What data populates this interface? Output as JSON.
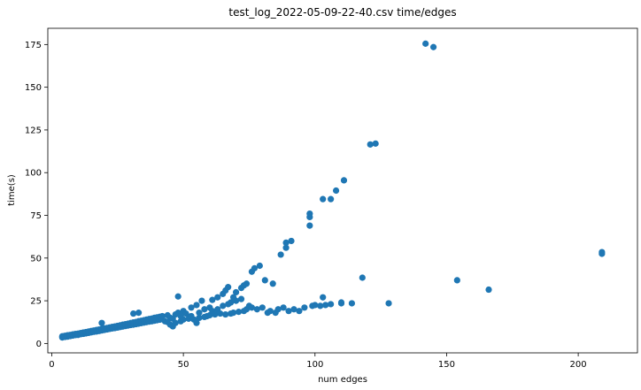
{
  "chart_data": {
    "type": "scatter",
    "title": "test_log_2022-05-09-22-40.csv time/edges",
    "xlabel": "num edges",
    "ylabel": "time(s)",
    "xlim": [
      -1.5,
      222.5
    ],
    "ylim": [
      -5.5,
      184.5
    ],
    "xticks": [
      0,
      50,
      100,
      150,
      200
    ],
    "yticks": [
      0,
      25,
      50,
      75,
      100,
      125,
      150,
      175
    ],
    "grid": false,
    "marker_color": "#1f77b4",
    "series": [
      {
        "points": [
          [
            4,
            3.5
          ],
          [
            4,
            4.2
          ],
          [
            5,
            3.8
          ],
          [
            5,
            4.5
          ],
          [
            6,
            4.0
          ],
          [
            6,
            4.8
          ],
          [
            7,
            4.3
          ],
          [
            7,
            5.0
          ],
          [
            8,
            4.6
          ],
          [
            8,
            5.3
          ],
          [
            9,
            4.9
          ],
          [
            9,
            5.6
          ],
          [
            10,
            5.0
          ],
          [
            10,
            5.8
          ],
          [
            11,
            5.4
          ],
          [
            11,
            6.1
          ],
          [
            12,
            5.6
          ],
          [
            12,
            6.4
          ],
          [
            13,
            5.9
          ],
          [
            13,
            6.7
          ],
          [
            14,
            6.2
          ],
          [
            14,
            7.0
          ],
          [
            15,
            6.5
          ],
          [
            15,
            7.3
          ],
          [
            16,
            6.8
          ],
          [
            16,
            7.6
          ],
          [
            17,
            7.0
          ],
          [
            17,
            7.9
          ],
          [
            18,
            7.3
          ],
          [
            18,
            8.2
          ],
          [
            19,
            7.6
          ],
          [
            19,
            8.5
          ],
          [
            19,
            12.0
          ],
          [
            20,
            7.9
          ],
          [
            20,
            8.8
          ],
          [
            21,
            8.2
          ],
          [
            21,
            9.1
          ],
          [
            22,
            8.5
          ],
          [
            22,
            9.4
          ],
          [
            23,
            8.8
          ],
          [
            23,
            9.7
          ],
          [
            24,
            9.0
          ],
          [
            24,
            10.0
          ],
          [
            25,
            9.3
          ],
          [
            25,
            10.3
          ],
          [
            26,
            9.6
          ],
          [
            26,
            10.6
          ],
          [
            27,
            9.9
          ],
          [
            27,
            11.0
          ],
          [
            28,
            10.2
          ],
          [
            28,
            11.3
          ],
          [
            29,
            10.5
          ],
          [
            29,
            11.6
          ],
          [
            30,
            10.8
          ],
          [
            30,
            12.0
          ],
          [
            31,
            11.0
          ],
          [
            31,
            12.3
          ],
          [
            31,
            17.5
          ],
          [
            32,
            11.3
          ],
          [
            32,
            12.6
          ],
          [
            33,
            11.6
          ],
          [
            33,
            13.0
          ],
          [
            33,
            18.0
          ],
          [
            34,
            11.9
          ],
          [
            34,
            13.3
          ],
          [
            35,
            12.2
          ],
          [
            35,
            13.6
          ],
          [
            36,
            12.5
          ],
          [
            36,
            14.0
          ],
          [
            37,
            12.8
          ],
          [
            37,
            14.3
          ],
          [
            38,
            13.0
          ],
          [
            38,
            14.6
          ],
          [
            39,
            13.3
          ],
          [
            39,
            15.0
          ],
          [
            40,
            13.6
          ],
          [
            40,
            15.3
          ],
          [
            41,
            13.9
          ],
          [
            41,
            15.6
          ],
          [
            42,
            14.2
          ],
          [
            42,
            16.0
          ],
          [
            43,
            13.0
          ],
          [
            44,
            12.5
          ],
          [
            44,
            16.5
          ],
          [
            45,
            11.0
          ],
          [
            45,
            15.0
          ],
          [
            46,
            10.0
          ],
          [
            46,
            14.5
          ],
          [
            47,
            17.0
          ],
          [
            47,
            12.0
          ],
          [
            48,
            18.0
          ],
          [
            48,
            27.5
          ],
          [
            49,
            13.0
          ],
          [
            49,
            16.0
          ],
          [
            50,
            19.0
          ],
          [
            50,
            14.0
          ],
          [
            51,
            17.5
          ],
          [
            52,
            14.5
          ],
          [
            53,
            21.0
          ],
          [
            53,
            16.0
          ],
          [
            54,
            14.0
          ],
          [
            55,
            12.0
          ],
          [
            55,
            22.5
          ],
          [
            56,
            15.0
          ],
          [
            56,
            18.0
          ],
          [
            57,
            25.0
          ],
          [
            58,
            15.5
          ],
          [
            58,
            20.0
          ],
          [
            59,
            16.0
          ],
          [
            60,
            21.0
          ],
          [
            60,
            16.5
          ],
          [
            61,
            19.0
          ],
          [
            61,
            25.5
          ],
          [
            62,
            17.0
          ],
          [
            63,
            27.0
          ],
          [
            63,
            20.0
          ],
          [
            64,
            17.5
          ],
          [
            65,
            29.0
          ],
          [
            65,
            22.0
          ],
          [
            66,
            17.0
          ],
          [
            66,
            31.0
          ],
          [
            67,
            23.0
          ],
          [
            67,
            33.0
          ],
          [
            68,
            17.5
          ],
          [
            68,
            24.0
          ],
          [
            69,
            27.0
          ],
          [
            69,
            18.0
          ],
          [
            70,
            25.0
          ],
          [
            70,
            30.0
          ],
          [
            71,
            18.5
          ],
          [
            72,
            26.0
          ],
          [
            72,
            32.5
          ],
          [
            73,
            19.0
          ],
          [
            73,
            34.0
          ],
          [
            74,
            20.0
          ],
          [
            74,
            35.0
          ],
          [
            75,
            22.0
          ],
          [
            76,
            42.0
          ],
          [
            76,
            21.0
          ],
          [
            77,
            44.0
          ],
          [
            78,
            20.0
          ],
          [
            79,
            45.5
          ],
          [
            80,
            21.0
          ],
          [
            81,
            37.0
          ],
          [
            82,
            18.0
          ],
          [
            83,
            19.0
          ],
          [
            84,
            35.0
          ],
          [
            85,
            18.0
          ],
          [
            86,
            20.0
          ],
          [
            87,
            52.0
          ],
          [
            88,
            21.0
          ],
          [
            89,
            56.0
          ],
          [
            89,
            59.0
          ],
          [
            90,
            19.0
          ],
          [
            91,
            60.0
          ],
          [
            92,
            20.0
          ],
          [
            94,
            19.0
          ],
          [
            96,
            21.0
          ],
          [
            98,
            69.0
          ],
          [
            98,
            74.0
          ],
          [
            98,
            76.0
          ],
          [
            99,
            22.0
          ],
          [
            100,
            22.5
          ],
          [
            102,
            22.0
          ],
          [
            103,
            84.5
          ],
          [
            103,
            27.0
          ],
          [
            104,
            22.5
          ],
          [
            106,
            84.5
          ],
          [
            106,
            23.0
          ],
          [
            108,
            89.5
          ],
          [
            110,
            23.5
          ],
          [
            110,
            24.0
          ],
          [
            111,
            95.5
          ],
          [
            114,
            23.5
          ],
          [
            118,
            38.5
          ],
          [
            121,
            116.5
          ],
          [
            123,
            117.0
          ],
          [
            128,
            23.5
          ],
          [
            142,
            175.5
          ],
          [
            145,
            173.5
          ],
          [
            154,
            37.0
          ],
          [
            166,
            31.5
          ],
          [
            209,
            52.5
          ],
          [
            209,
            53.5
          ]
        ]
      }
    ]
  }
}
